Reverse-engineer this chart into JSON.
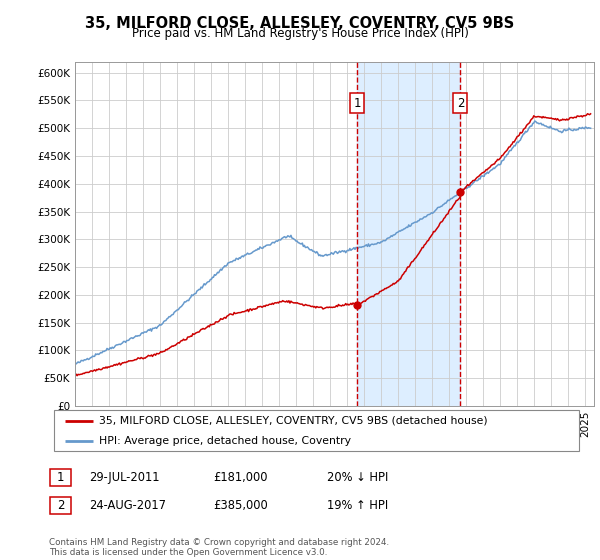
{
  "title": "35, MILFORD CLOSE, ALLESLEY, COVENTRY, CV5 9BS",
  "subtitle": "Price paid vs. HM Land Registry's House Price Index (HPI)",
  "ylim": [
    0,
    620000
  ],
  "yticks": [
    0,
    50000,
    100000,
    150000,
    200000,
    250000,
    300000,
    350000,
    400000,
    450000,
    500000,
    550000,
    600000
  ],
  "xlim_start": 1995.0,
  "xlim_end": 2025.5,
  "transaction1_date": 2011.57,
  "transaction1_value": 181000,
  "transaction2_date": 2017.65,
  "transaction2_value": 385000,
  "legend_line1": "35, MILFORD CLOSE, ALLESLEY, COVENTRY, CV5 9BS (detached house)",
  "legend_line2": "HPI: Average price, detached house, Coventry",
  "table_row1_num": "1",
  "table_row1_date": "29-JUL-2011",
  "table_row1_price": "£181,000",
  "table_row1_hpi": "20% ↓ HPI",
  "table_row2_num": "2",
  "table_row2_date": "24-AUG-2017",
  "table_row2_price": "£385,000",
  "table_row2_hpi": "19% ↑ HPI",
  "footnote": "Contains HM Land Registry data © Crown copyright and database right 2024.\nThis data is licensed under the Open Government Licence v3.0.",
  "red_color": "#cc0000",
  "blue_color": "#6699cc",
  "shading_color": "#ddeeff",
  "grid_color": "#cccccc"
}
